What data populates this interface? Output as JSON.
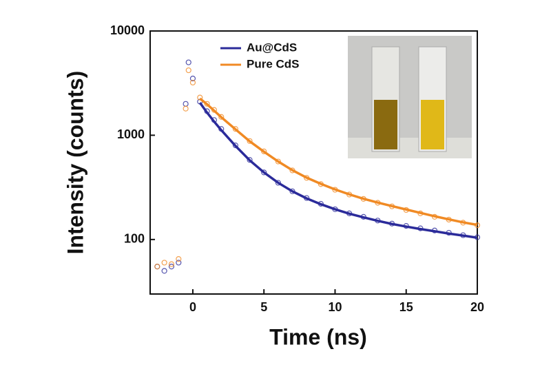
{
  "chart_data": {
    "type": "scatter-fit",
    "x_label": "Time (ns)",
    "y_label": "Intensity (counts)",
    "xlim": [
      -3,
      20
    ],
    "xticks": [
      0,
      5,
      10,
      15,
      20
    ],
    "ylim": [
      30,
      10000
    ],
    "yticks": [
      100,
      1000,
      10000
    ],
    "log_y": true,
    "legend": "upper center",
    "x": [
      -2.5,
      -2,
      -1.5,
      -1,
      -0.5,
      -0.3,
      0,
      0.5,
      1,
      1.5,
      2,
      3,
      4,
      5,
      6,
      7,
      8,
      9,
      10,
      11,
      12,
      13,
      14,
      15,
      16,
      17,
      18,
      19,
      20
    ],
    "series": [
      {
        "name": "Au@CdS",
        "color": "#2b2b9a",
        "values": [
          55,
          50,
          55,
          60,
          2000,
          5000,
          3500,
          2100,
          1700,
          1400,
          1150,
          800,
          580,
          440,
          350,
          290,
          250,
          220,
          195,
          178,
          165,
          152,
          142,
          135,
          128,
          122,
          116,
          110,
          105
        ],
        "fit": [
          null,
          null,
          null,
          null,
          null,
          null,
          null,
          2050,
          1650,
          1350,
          1120,
          790,
          575,
          440,
          350,
          290,
          248,
          218,
          195,
          177,
          163,
          151,
          141,
          133,
          126,
          120,
          114,
          109,
          104
        ]
      },
      {
        "name": "Pure CdS",
        "color": "#f08a24",
        "values": [
          55,
          60,
          58,
          65,
          1800,
          4200,
          3200,
          2300,
          2000,
          1750,
          1500,
          1150,
          880,
          700,
          560,
          460,
          390,
          340,
          300,
          270,
          245,
          225,
          208,
          192,
          178,
          165,
          155,
          145,
          137
        ],
        "fit": [
          null,
          null,
          null,
          null,
          null,
          null,
          null,
          2250,
          1980,
          1720,
          1490,
          1140,
          875,
          695,
          560,
          462,
          392,
          342,
          302,
          271,
          246,
          226,
          209,
          194,
          180,
          167,
          156,
          146,
          138
        ]
      }
    ]
  }
}
